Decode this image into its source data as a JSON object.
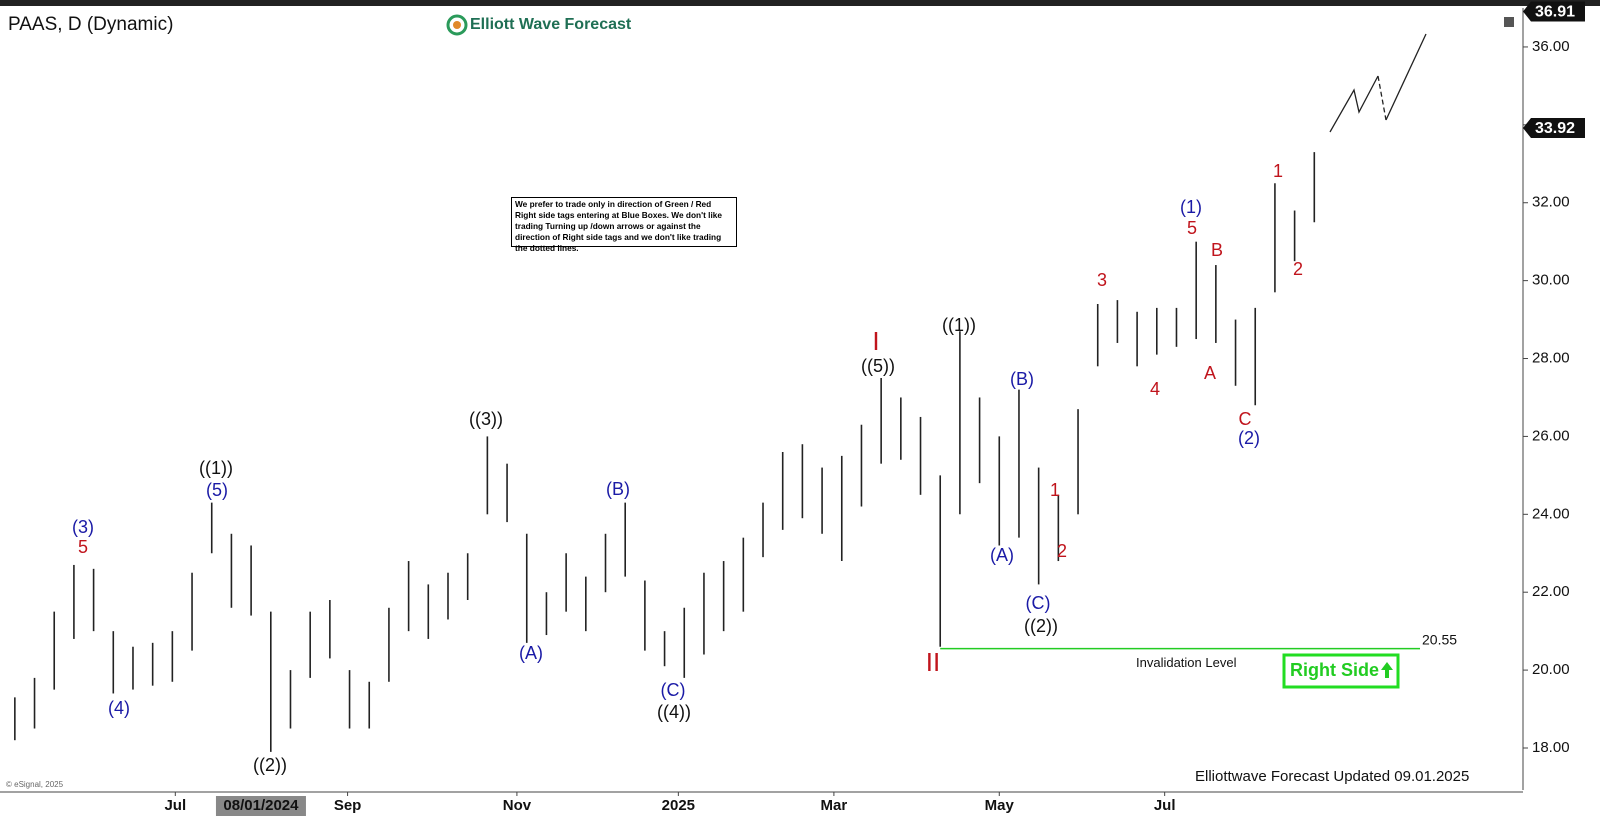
{
  "chart_data": {
    "type": "range-bar",
    "title": "PAAS, D (Dynamic)",
    "brand": "Elliott Wave Forecast",
    "footer": "Elliottwave Forecast Updated 09.01.2025",
    "copyright": "© eSignal, 2025",
    "note": "We prefer to trade only in direction of Green / Red Right side tags entering at Blue Boxes. We don't like trading Turning up /down arrows or against the direction of Right side tags and we don't like trading the dotted lines.",
    "right_side": "Right Side",
    "bar_color": "#222222",
    "highs": [
      19.3,
      19.8,
      21.5,
      22.7,
      22.6,
      21.0,
      20.6,
      20.7,
      21.0,
      22.5,
      24.3,
      23.5,
      23.2,
      21.5,
      20.0,
      21.5,
      21.8,
      20.0,
      19.7,
      21.6,
      22.8,
      22.2,
      22.5,
      23.0,
      26.0,
      25.3,
      23.5,
      22.0,
      23.0,
      22.4,
      23.5,
      24.3,
      22.3,
      21.0,
      21.6,
      22.5,
      22.8,
      23.4,
      24.3,
      25.6,
      25.8,
      25.2,
      25.5,
      26.3,
      27.5,
      27.0,
      26.5,
      25.0,
      28.7,
      27.0,
      26.0,
      27.2,
      25.2,
      24.5,
      26.7,
      29.4,
      29.5,
      29.2,
      29.3,
      29.3,
      31.0,
      30.4,
      29.0,
      29.3,
      32.5,
      31.8,
      33.3
    ],
    "lows": [
      18.2,
      18.5,
      19.5,
      20.8,
      21.0,
      19.4,
      19.5,
      19.6,
      19.7,
      20.5,
      23.0,
      21.6,
      21.4,
      17.9,
      18.5,
      19.8,
      20.3,
      18.5,
      18.5,
      19.7,
      21.0,
      20.8,
      21.3,
      21.8,
      24.0,
      23.8,
      20.7,
      20.9,
      21.5,
      21.0,
      22.0,
      22.4,
      20.5,
      20.1,
      19.8,
      20.4,
      21.0,
      21.5,
      22.9,
      23.6,
      23.9,
      23.5,
      22.8,
      24.2,
      25.3,
      25.4,
      24.5,
      20.6,
      24.0,
      24.8,
      23.2,
      23.4,
      22.2,
      22.8,
      24.0,
      27.8,
      28.4,
      27.8,
      28.1,
      28.3,
      28.5,
      28.4,
      27.3,
      26.8,
      29.7,
      30.5,
      31.5
    ],
    "xlim": [
      -0.5,
      76.6
    ],
    "xticks": [
      {
        "value": 8.15,
        "label": "Jul"
      },
      {
        "value": 16.9,
        "label": "Sep"
      },
      {
        "value": 25.5,
        "label": "Nov"
      },
      {
        "value": 33.7,
        "label": "2025"
      },
      {
        "value": 41.6,
        "label": "Mar"
      },
      {
        "value": 50.0,
        "label": "May"
      },
      {
        "value": 58.4,
        "label": "Jul"
      }
    ],
    "cursor_date": {
      "value": 12.5,
      "label": "08/01/2024"
    },
    "ylim": [
      16.87,
      37.0
    ],
    "yticks": [
      {
        "value": 18,
        "label": "18.00"
      },
      {
        "value": 20,
        "label": "20.00"
      },
      {
        "value": 22,
        "label": "22.00"
      },
      {
        "value": 24,
        "label": "24.00"
      },
      {
        "value": 26,
        "label": "26.00"
      },
      {
        "value": 28,
        "label": "28.00"
      },
      {
        "value": 30,
        "label": "30.00"
      },
      {
        "value": 32,
        "label": "32.00"
      },
      {
        "value": 34,
        "label": "34.00"
      },
      {
        "value": 36,
        "label": "36.00"
      }
    ],
    "price_tags": [
      36.91,
      33.92
    ],
    "invalidation": {
      "value": 20.55,
      "text": "Invalidation Level",
      "color": "#22cc22"
    },
    "wave_labels": [
      {
        "text": "(3)",
        "color": "#1a1aa6"
      },
      {
        "text": "5",
        "color": "#c0141c"
      },
      {
        "text": "(4)",
        "color": "#1a1aa6"
      },
      {
        "text": "((1))",
        "color": "#111111"
      },
      {
        "text": "(5)",
        "color": "#1a1aa6"
      },
      {
        "text": "((2))",
        "color": "#111111"
      },
      {
        "text": "((3))",
        "color": "#111111"
      },
      {
        "text": "(A)",
        "color": "#1a1aa6"
      },
      {
        "text": "(B)",
        "color": "#1a1aa6"
      },
      {
        "text": "(C)",
        "color": "#1a1aa6"
      },
      {
        "text": "((4))",
        "color": "#111111"
      },
      {
        "text": "I",
        "color": "#c0141c"
      },
      {
        "text": "((5))",
        "color": "#111111"
      },
      {
        "text": "II",
        "color": "#c0141c"
      },
      {
        "text": "((1))",
        "color": "#111111"
      },
      {
        "text": "(B)",
        "color": "#1a1aa6"
      },
      {
        "text": "(A)",
        "color": "#1a1aa6"
      },
      {
        "text": "1",
        "color": "#c0141c"
      },
      {
        "text": "2",
        "color": "#c0141c"
      },
      {
        "text": "(C)",
        "color": "#1a1aa6"
      },
      {
        "text": "((2))",
        "color": "#111111"
      },
      {
        "text": "3",
        "color": "#c0141c"
      },
      {
        "text": "4",
        "color": "#c0141c"
      },
      {
        "text": "(1)",
        "color": "#1a1aa6"
      },
      {
        "text": "5",
        "color": "#c0141c"
      },
      {
        "text": "B",
        "color": "#c0141c"
      },
      {
        "text": "A",
        "color": "#c0141c"
      },
      {
        "text": "C",
        "color": "#c0141c"
      },
      {
        "text": "(2)",
        "color": "#1a1aa6"
      },
      {
        "text": "1",
        "color": "#c0141c"
      },
      {
        "text": "2",
        "color": "#c0141c"
      }
    ]
  }
}
